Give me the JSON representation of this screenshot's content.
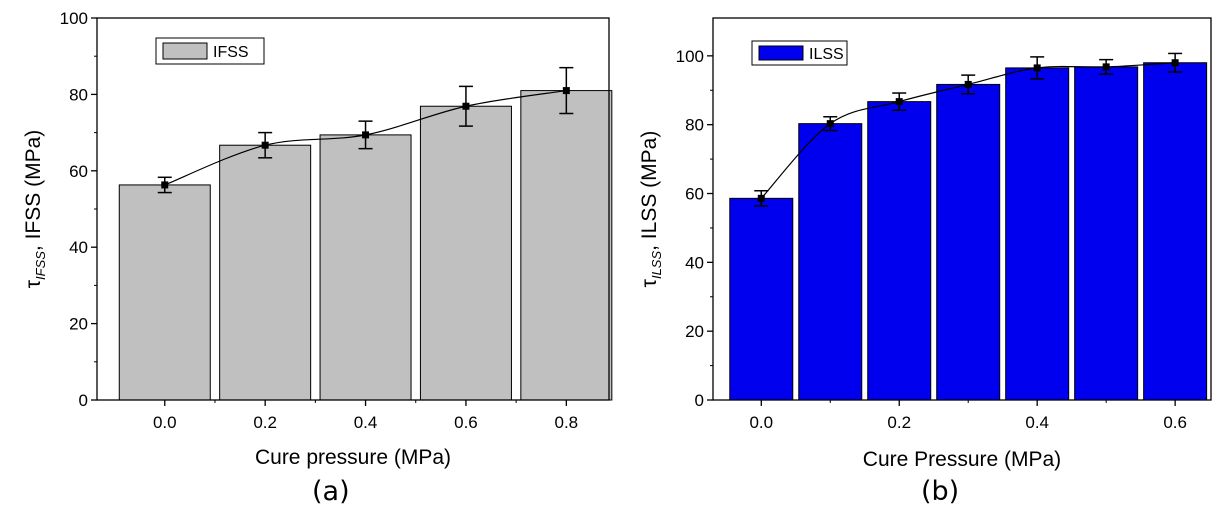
{
  "chart_data": [
    {
      "type": "bar",
      "panel_label": "(a)",
      "bar_color": "#c0c0c0",
      "line_color": "#000000",
      "legend": {
        "label": "IFSS",
        "position": "top-left"
      },
      "xlabel": "Cure pressure (MPa)",
      "ylabel_prefix": "τ",
      "ylabel_subscript": "IFSS",
      "ylabel_suffix": ", IFSS (MPa)",
      "x": [
        0.0,
        0.2,
        0.4,
        0.6,
        0.8
      ],
      "x_tick_labels": [
        "0.0",
        "0.2",
        "0.4",
        "0.6",
        "0.8"
      ],
      "xlim": [
        -0.135,
        0.885
      ],
      "values": [
        56.3,
        66.7,
        69.4,
        76.9,
        81.0
      ],
      "error": [
        2.0,
        3.3,
        3.6,
        5.2,
        6.0
      ],
      "ylim": [
        0,
        100
      ],
      "y_ticks": [
        0,
        20,
        40,
        60,
        80,
        100
      ],
      "y_tick_labels": [
        "0",
        "20",
        "40",
        "60",
        "80",
        "100"
      ],
      "grid": false
    },
    {
      "type": "bar",
      "panel_label": "(b)",
      "bar_color": "#0000ee",
      "line_color": "#000000",
      "legend": {
        "label": "ILSS",
        "position": "top-left"
      },
      "xlabel": "Cure Pressure (MPa)",
      "ylabel_prefix": "τ",
      "ylabel_subscript": "ILSS",
      "ylabel_suffix": ", ILSS (MPa)",
      "x": [
        0.0,
        0.1,
        0.2,
        0.3,
        0.4,
        0.5,
        0.6
      ],
      "x_tick_labels": [
        "0.0",
        "0.2",
        "0.4",
        "0.6"
      ],
      "x_tick_values": [
        0.0,
        0.2,
        0.4,
        0.6
      ],
      "xlim": [
        -0.07,
        0.652
      ],
      "values": [
        58.6,
        80.3,
        86.7,
        91.7,
        96.5,
        96.8,
        98.0
      ],
      "error": [
        2.2,
        2.0,
        2.5,
        2.7,
        3.2,
        2.1,
        2.7
      ],
      "ylim": [
        0,
        111
      ],
      "y_ticks": [
        0,
        20,
        40,
        60,
        80,
        100
      ],
      "y_tick_labels": [
        "0",
        "20",
        "40",
        "60",
        "80",
        "100"
      ],
      "grid": false
    }
  ]
}
